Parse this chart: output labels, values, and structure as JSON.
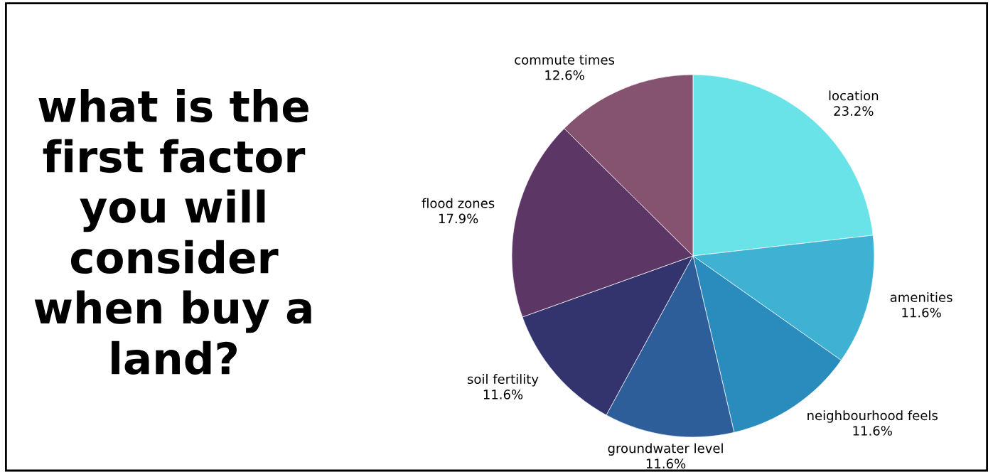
{
  "chart_data": {
    "type": "pie",
    "title": "what is the\nfirst factor\nyou will\nconsider\nwhen buy a\nland?",
    "categories": [
      "location",
      "amenities",
      "neighbourhood feels",
      "groundwater level",
      "soil fertility",
      "flood zones",
      "commute times"
    ],
    "values": [
      23.2,
      11.6,
      11.6,
      11.6,
      11.6,
      17.9,
      12.6
    ],
    "value_labels": [
      "23.2%",
      "11.6%",
      "11.6%",
      "11.6%",
      "11.6%",
      "17.9%",
      "12.6%"
    ],
    "colors": [
      "#6ae3e8",
      "#3fb2d4",
      "#2a8bbd",
      "#2e5e99",
      "#33346e",
      "#5c3766",
      "#85536f"
    ],
    "legend": false
  }
}
